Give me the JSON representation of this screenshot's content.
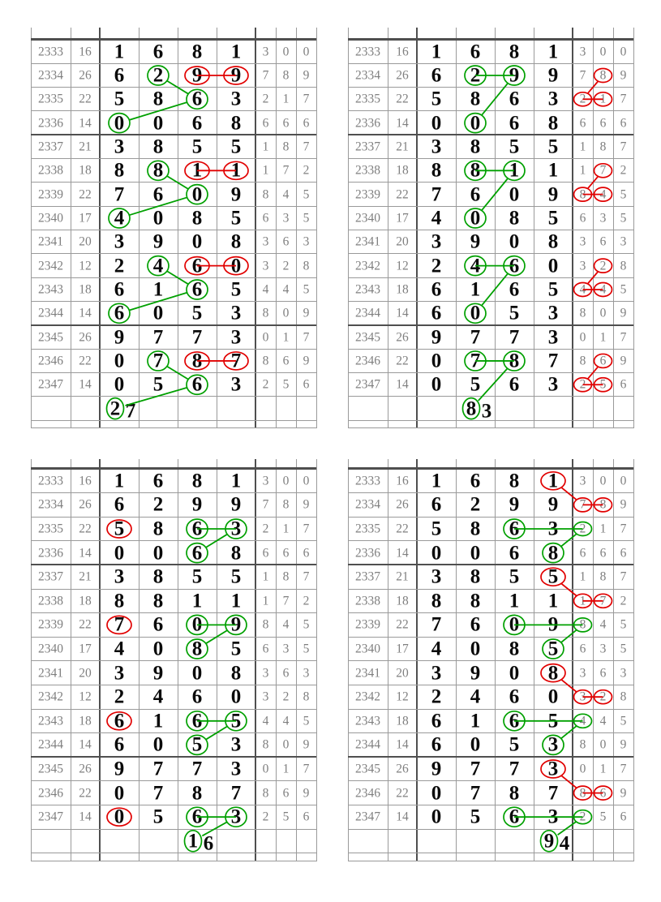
{
  "title": "lottery-trend-charts",
  "colors": {
    "green": "#00a000",
    "red": "#e10000",
    "grid": "#9a9a9a",
    "grid_dark": "#4f4f4f",
    "text_gray": "#7f7f7f",
    "text_black": "#0a0a0a",
    "background": "#ffffff"
  },
  "chart_data": {
    "type": "table",
    "columns": [
      "issue",
      "sum",
      "digit1",
      "digit2",
      "digit3",
      "digit4",
      "small1",
      "small2",
      "small3"
    ],
    "rows": [
      [
        "2333",
        "16",
        "1",
        "6",
        "8",
        "1",
        "3",
        "0",
        "0"
      ],
      [
        "2334",
        "26",
        "6",
        "2",
        "9",
        "9",
        "7",
        "8",
        "9"
      ],
      [
        "2335",
        "22",
        "5",
        "8",
        "6",
        "3",
        "2",
        "1",
        "7"
      ],
      [
        "2336",
        "14",
        "0",
        "0",
        "6",
        "8",
        "6",
        "6",
        "6"
      ],
      [
        "2337",
        "21",
        "3",
        "8",
        "5",
        "5",
        "1",
        "8",
        "7"
      ],
      [
        "2338",
        "18",
        "8",
        "8",
        "1",
        "1",
        "1",
        "7",
        "2"
      ],
      [
        "2339",
        "22",
        "7",
        "6",
        "0",
        "9",
        "8",
        "4",
        "5"
      ],
      [
        "2340",
        "17",
        "4",
        "0",
        "8",
        "5",
        "6",
        "3",
        "5"
      ],
      [
        "2341",
        "20",
        "3",
        "9",
        "0",
        "8",
        "3",
        "6",
        "3"
      ],
      [
        "2342",
        "12",
        "2",
        "4",
        "6",
        "0",
        "3",
        "2",
        "8"
      ],
      [
        "2343",
        "18",
        "6",
        "1",
        "6",
        "5",
        "4",
        "4",
        "5"
      ],
      [
        "2344",
        "14",
        "6",
        "0",
        "5",
        "3",
        "8",
        "0",
        "9"
      ],
      [
        "2345",
        "26",
        "9",
        "7",
        "7",
        "3",
        "0",
        "1",
        "7"
      ],
      [
        "2346",
        "22",
        "0",
        "7",
        "8",
        "7",
        "8",
        "6",
        "9"
      ],
      [
        "2347",
        "14",
        "0",
        "5",
        "6",
        "3",
        "2",
        "5",
        "6"
      ]
    ],
    "group_breaks_after_rows": [
      3,
      11
    ],
    "predictions": [
      "27",
      "83",
      "16",
      "94"
    ]
  },
  "tables": [
    {
      "name": "top-left",
      "prediction": {
        "col": "d0",
        "text": "27"
      },
      "green_circles": [
        "1:d1",
        "2:d2",
        "3:d0",
        "5:d1",
        "6:d2",
        "7:d0",
        "9:d1",
        "10:d2",
        "11:d0",
        "13:d1",
        "14:d2",
        "15:d0"
      ],
      "red_circles": [
        "1:d2",
        "1:d3",
        "5:d2",
        "5:d3",
        "9:d2",
        "9:d3",
        "13:d2",
        "13:d3"
      ],
      "green_lines": [
        [
          "1:d1",
          "2:d2"
        ],
        [
          "2:d2",
          "3:d0"
        ],
        [
          "5:d1",
          "6:d2"
        ],
        [
          "6:d2",
          "7:d0"
        ],
        [
          "9:d1",
          "10:d2"
        ],
        [
          "10:d2",
          "11:d0"
        ],
        [
          "13:d1",
          "14:d2"
        ],
        [
          "14:d2",
          "15:d0"
        ]
      ],
      "red_lines": [
        [
          "1:d2",
          "1:d3"
        ],
        [
          "5:d2",
          "5:d3"
        ],
        [
          "9:d2",
          "9:d3"
        ],
        [
          "13:d2",
          "13:d3"
        ]
      ]
    },
    {
      "name": "top-right",
      "prediction": {
        "col": "d1",
        "text": "83"
      },
      "green_circles": [
        "1:d1",
        "1:d2",
        "3:d1",
        "5:d1",
        "5:d2",
        "7:d1",
        "9:d1",
        "9:d2",
        "11:d1",
        "13:d1",
        "13:d2",
        "15:d1"
      ],
      "red_circles": [
        "1:s1",
        "2:s0",
        "2:s1",
        "5:s1",
        "6:s0",
        "6:s1",
        "9:s1",
        "10:s0",
        "10:s1",
        "13:s1",
        "14:s0",
        "14:s1"
      ],
      "green_lines": [
        [
          "1:d1",
          "1:d2"
        ],
        [
          "1:d2",
          "3:d1"
        ],
        [
          "5:d1",
          "5:d2"
        ],
        [
          "5:d2",
          "7:d1"
        ],
        [
          "9:d1",
          "9:d2"
        ],
        [
          "9:d2",
          "11:d1"
        ],
        [
          "13:d1",
          "13:d2"
        ],
        [
          "13:d2",
          "15:d1"
        ]
      ],
      "red_lines": [
        [
          "1:s1",
          "2:s0"
        ],
        [
          "2:s0",
          "2:s1"
        ],
        [
          "5:s1",
          "6:s0"
        ],
        [
          "6:s0",
          "6:s1"
        ],
        [
          "9:s1",
          "10:s0"
        ],
        [
          "10:s0",
          "10:s1"
        ],
        [
          "13:s1",
          "14:s0"
        ],
        [
          "14:s0",
          "14:s1"
        ]
      ]
    },
    {
      "name": "bottom-left",
      "prediction": {
        "col": "d2",
        "text": "16"
      },
      "green_circles": [
        "2:d2",
        "2:d3",
        "3:d2",
        "6:d2",
        "6:d3",
        "7:d2",
        "10:d2",
        "10:d3",
        "11:d2",
        "14:d2",
        "14:d3",
        "15:d2"
      ],
      "red_circles": [
        "2:d0",
        "6:d0",
        "10:d0",
        "14:d0"
      ],
      "green_lines": [
        [
          "2:d2",
          "2:d3"
        ],
        [
          "2:d3",
          "3:d2"
        ],
        [
          "6:d2",
          "6:d3"
        ],
        [
          "6:d3",
          "7:d2"
        ],
        [
          "10:d2",
          "10:d3"
        ],
        [
          "10:d3",
          "11:d2"
        ],
        [
          "14:d2",
          "14:d3"
        ],
        [
          "14:d3",
          "15:d2"
        ]
      ],
      "red_lines": []
    },
    {
      "name": "bottom-right",
      "prediction": {
        "col": "d3",
        "text": "94"
      },
      "green_circles": [
        "2:d2",
        "2:s0",
        "3:d3",
        "6:d2",
        "6:s0",
        "7:d3",
        "10:d2",
        "10:s0",
        "11:d3",
        "14:d2",
        "14:s0",
        "15:d3"
      ],
      "red_circles": [
        "0:d3",
        "1:s0",
        "1:s1",
        "4:d3",
        "5:s0",
        "5:s1",
        "8:d3",
        "9:s0",
        "9:s1",
        "12:d3",
        "13:s0",
        "13:s1"
      ],
      "green_lines": [
        [
          "2:d2",
          "2:s0"
        ],
        [
          "2:s0",
          "3:d3"
        ],
        [
          "6:d2",
          "6:s0"
        ],
        [
          "6:s0",
          "7:d3"
        ],
        [
          "10:d2",
          "10:s0"
        ],
        [
          "10:s0",
          "11:d3"
        ],
        [
          "14:d2",
          "14:s0"
        ],
        [
          "14:s0",
          "15:d3"
        ]
      ],
      "red_lines": [
        [
          "0:d3",
          "1:s0"
        ],
        [
          "1:s0",
          "1:s1"
        ],
        [
          "4:d3",
          "5:s0"
        ],
        [
          "5:s0",
          "5:s1"
        ],
        [
          "8:d3",
          "9:s0"
        ],
        [
          "9:s0",
          "9:s1"
        ],
        [
          "12:d3",
          "13:s0"
        ],
        [
          "13:s0",
          "13:s1"
        ]
      ]
    }
  ]
}
